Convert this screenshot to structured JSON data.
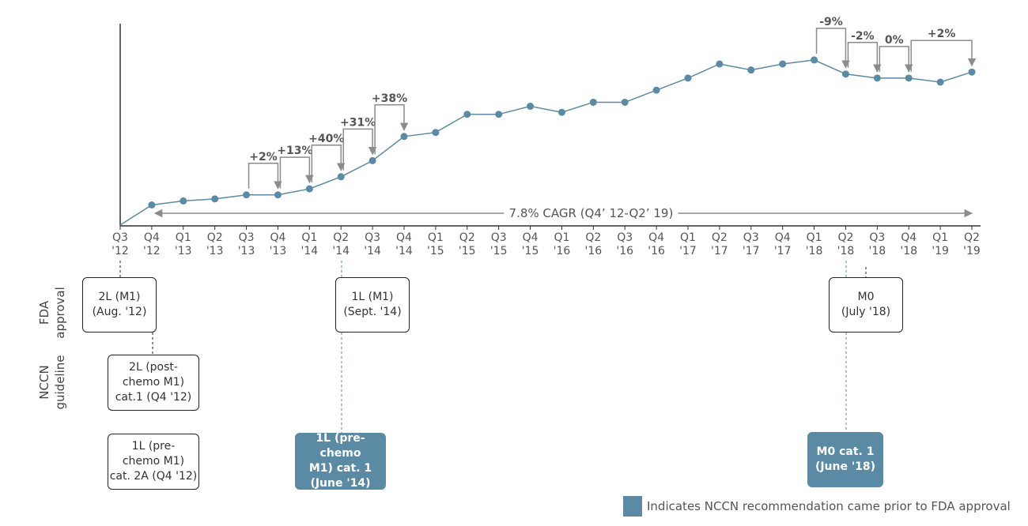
{
  "chart_data": {
    "type": "line",
    "categories": [
      "Q3\n'12",
      "Q4\n'12",
      "Q1\n'13",
      "Q2\n'13",
      "Q3\n'13",
      "Q4\n'13",
      "Q1\n'14",
      "Q2\n'14",
      "Q3\n'14",
      "Q4\n'14",
      "Q1\n'15",
      "Q2\n'15",
      "Q3\n'15",
      "Q4\n'15",
      "Q1\n'16",
      "Q2\n'16",
      "Q3\n'16",
      "Q4\n'16",
      "Q1\n'17",
      "Q2\n'17",
      "Q3\n'17",
      "Q4\n'17",
      "Q1\n'18",
      "Q2\n'18",
      "Q3\n'18",
      "Q4\n'18",
      "Q1\n'19",
      "Q2\n'19"
    ],
    "values": [
      0,
      10,
      12,
      13,
      15,
      15,
      18,
      24,
      32,
      44,
      46,
      55,
      55,
      59,
      56,
      61,
      61,
      67,
      73,
      80,
      77,
      80,
      82,
      75,
      73,
      73,
      71,
      76
    ],
    "color": "#5b8aa5",
    "ylim": [
      0,
      100
    ],
    "changes": [
      {
        "text": "+2%",
        "from": "Q3\n'13",
        "to": "Q4\n'13"
      },
      {
        "text": "+13%",
        "from": "Q4\n'13",
        "to": "Q1\n'14"
      },
      {
        "text": "+40%",
        "from": "Q1\n'14",
        "to": "Q2\n'14"
      },
      {
        "text": "+31%",
        "from": "Q2\n'14",
        "to": "Q3\n'14"
      },
      {
        "text": "+38%",
        "from": "Q3\n'14",
        "to": "Q4\n'14"
      },
      {
        "text": "-9%",
        "from": "Q1\n'18",
        "to": "Q2\n'18"
      },
      {
        "text": "-2%",
        "from": "Q2\n'18",
        "to": "Q3\n'18"
      },
      {
        "text": "0%",
        "from": "Q3\n'18",
        "to": "Q4\n'18"
      },
      {
        "text": "+2%",
        "from": "Q4\n'18",
        "to": "Q2\n'19"
      }
    ],
    "cagr": {
      "text": "7.8% CAGR (Q4’ 12-Q2’ 19)",
      "from": "Q4\n'12",
      "to": "Q2\n'19"
    }
  },
  "timeline": {
    "row_labels": [
      "FDA\napproval",
      "NCCN\nguideline"
    ],
    "fda": [
      "2L (M1)\n(Aug. '12)",
      "1L (M1)\n(Sept. '14)",
      "M0\n(July '18)"
    ],
    "nccn": [
      "2L (post-\nchemo M1)\ncat.1 (Q4 '12)",
      "1L (pre-\nchemo M1)\ncat. 2A (Q4 '12)"
    ],
    "nccn_prior": [
      "1L (pre-chemo\nM1) cat. 1\n(June '14)",
      "M0 cat. 1\n(June '18)"
    ],
    "legend": "Indicates NCCN recommendation came prior to FDA approval"
  }
}
